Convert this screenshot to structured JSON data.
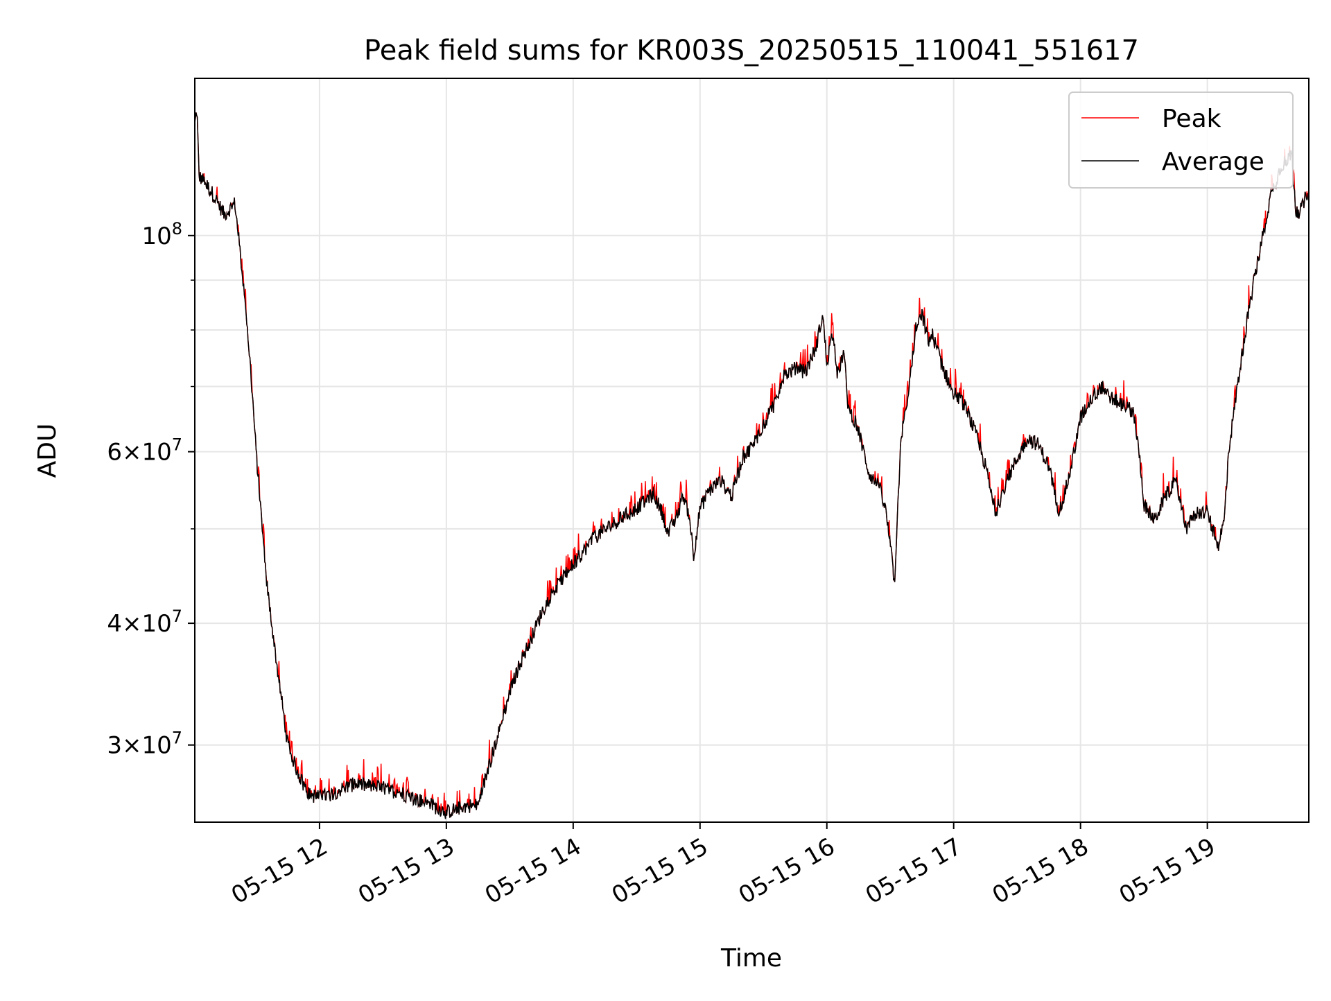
{
  "chart_data": {
    "type": "line",
    "title": "Peak field sums for KR003S_20250515_110041_551617",
    "xlabel": "Time",
    "ylabel": "ADU",
    "yscale": "log",
    "ylim": [
      25000000,
      145000000
    ],
    "xlim": [
      "2025-05-15 11:01",
      "2025-05-15 19:48"
    ],
    "grid": true,
    "legend": "top-right",
    "xticks": [
      {
        "t": "2025-05-15 12:00",
        "label": "05-15 12"
      },
      {
        "t": "2025-05-15 13:00",
        "label": "05-15 13"
      },
      {
        "t": "2025-05-15 14:00",
        "label": "05-15 14"
      },
      {
        "t": "2025-05-15 15:00",
        "label": "05-15 15"
      },
      {
        "t": "2025-05-15 16:00",
        "label": "05-15 16"
      },
      {
        "t": "2025-05-15 17:00",
        "label": "05-15 17"
      },
      {
        "t": "2025-05-15 18:00",
        "label": "05-15 18"
      },
      {
        "t": "2025-05-15 19:00",
        "label": "05-15 19"
      }
    ],
    "yticks_major": [
      {
        "value": 30000000,
        "mantissa": "3",
        "exp": "7"
      },
      {
        "value": 40000000,
        "mantissa": "4",
        "exp": "7"
      },
      {
        "value": 60000000,
        "mantissa": "6",
        "exp": "7"
      },
      {
        "value": 100000000,
        "mantissa": "",
        "exp": "8"
      }
    ],
    "yticks_minor": [
      50000000,
      70000000,
      80000000,
      90000000
    ],
    "series": [
      {
        "name": "Peak",
        "color": "#ff0000",
        "spiky": true
      },
      {
        "name": "Average",
        "color": "#000000",
        "spiky": false
      }
    ],
    "x": [
      "2025-05-15 11:01",
      "2025-05-15 11:02",
      "2025-05-15 11:03",
      "2025-05-15 11:05",
      "2025-05-15 11:10",
      "2025-05-15 11:15",
      "2025-05-15 11:20",
      "2025-05-15 11:25",
      "2025-05-15 11:28",
      "2025-05-15 11:30",
      "2025-05-15 11:35",
      "2025-05-15 11:40",
      "2025-05-15 11:45",
      "2025-05-15 11:50",
      "2025-05-15 11:55",
      "2025-05-15 12:00",
      "2025-05-15 12:05",
      "2025-05-15 12:10",
      "2025-05-15 12:15",
      "2025-05-15 12:20",
      "2025-05-15 12:25",
      "2025-05-15 12:30",
      "2025-05-15 12:40",
      "2025-05-15 12:50",
      "2025-05-15 13:00",
      "2025-05-15 13:05",
      "2025-05-15 13:10",
      "2025-05-15 13:15",
      "2025-05-15 13:20",
      "2025-05-15 13:25",
      "2025-05-15 13:30",
      "2025-05-15 13:35",
      "2025-05-15 13:40",
      "2025-05-15 13:45",
      "2025-05-15 13:50",
      "2025-05-15 14:00",
      "2025-05-15 14:10",
      "2025-05-15 14:20",
      "2025-05-15 14:30",
      "2025-05-15 14:38",
      "2025-05-15 14:42",
      "2025-05-15 14:45",
      "2025-05-15 14:50",
      "2025-05-15 14:52",
      "2025-05-15 14:55",
      "2025-05-15 14:57",
      "2025-05-15 15:00",
      "2025-05-15 15:05",
      "2025-05-15 15:10",
      "2025-05-15 15:15",
      "2025-05-15 15:20",
      "2025-05-15 15:25",
      "2025-05-15 15:30",
      "2025-05-15 15:35",
      "2025-05-15 15:40",
      "2025-05-15 15:45",
      "2025-05-15 15:50",
      "2025-05-15 15:55",
      "2025-05-15 15:58",
      "2025-05-15 16:00",
      "2025-05-15 16:03",
      "2025-05-15 16:05",
      "2025-05-15 16:08",
      "2025-05-15 16:10",
      "2025-05-15 16:15",
      "2025-05-15 16:20",
      "2025-05-15 16:25",
      "2025-05-15 16:28",
      "2025-05-15 16:30",
      "2025-05-15 16:32",
      "2025-05-15 16:35",
      "2025-05-15 16:38",
      "2025-05-15 16:40",
      "2025-05-15 16:42",
      "2025-05-15 16:45",
      "2025-05-15 16:48",
      "2025-05-15 16:50",
      "2025-05-15 16:55",
      "2025-05-15 17:00",
      "2025-05-15 17:05",
      "2025-05-15 17:10",
      "2025-05-15 17:15",
      "2025-05-15 17:20",
      "2025-05-15 17:25",
      "2025-05-15 17:30",
      "2025-05-15 17:35",
      "2025-05-15 17:40",
      "2025-05-15 17:45",
      "2025-05-15 17:50",
      "2025-05-15 17:55",
      "2025-05-15 18:00",
      "2025-05-15 18:05",
      "2025-05-15 18:10",
      "2025-05-15 18:15",
      "2025-05-15 18:20",
      "2025-05-15 18:25",
      "2025-05-15 18:28",
      "2025-05-15 18:30",
      "2025-05-15 18:35",
      "2025-05-15 18:40",
      "2025-05-15 18:45",
      "2025-05-15 18:50",
      "2025-05-15 18:55",
      "2025-05-15 19:00",
      "2025-05-15 19:05",
      "2025-05-15 19:08",
      "2025-05-15 19:10",
      "2025-05-15 19:15",
      "2025-05-15 19:20",
      "2025-05-15 19:25",
      "2025-05-15 19:30",
      "2025-05-15 19:35",
      "2025-05-15 19:38",
      "2025-05-15 19:40",
      "2025-05-15 19:42",
      "2025-05-15 19:45",
      "2025-05-15 19:48"
    ],
    "y": [
      130000000,
      135000000,
      115000000,
      114000000,
      110000000,
      105000000,
      108000000,
      85000000,
      70000000,
      60000000,
      44000000,
      36000000,
      30000000,
      28000000,
      26700000,
      26500000,
      26700000,
      27000000,
      27300000,
      27300000,
      27200000,
      27100000,
      26700000,
      26200000,
      25600000,
      25800000,
      26000000,
      26000000,
      28500000,
      31000000,
      34000000,
      36500000,
      38500000,
      41000000,
      43000000,
      46000000,
      49000000,
      50800000,
      52500000,
      54300000,
      52000000,
      49500000,
      52000000,
      54200000,
      51500000,
      47000000,
      52500000,
      55000000,
      56000000,
      54000000,
      59000000,
      61000000,
      64000000,
      67000000,
      72000000,
      73000000,
      72500000,
      77000000,
      83000000,
      74000000,
      80000000,
      72000000,
      76000000,
      67000000,
      63000000,
      57000000,
      55000000,
      52000000,
      48000000,
      44000000,
      62000000,
      67000000,
      73000000,
      80000000,
      83000000,
      78000000,
      79000000,
      73000000,
      69000000,
      67000000,
      63000000,
      58000000,
      52000000,
      56000000,
      59000000,
      62000000,
      61000000,
      58000000,
      52000000,
      57000000,
      65000000,
      68000000,
      70000000,
      68000000,
      67000000,
      66000000,
      59000000,
      53000000,
      51000000,
      54000000,
      56000000,
      50000000,
      52000000,
      52000000,
      48000000,
      51000000,
      60000000,
      72000000,
      85000000,
      97000000,
      110000000,
      118000000,
      120000000,
      121000000,
      105000000,
      107000000,
      112000000
    ]
  }
}
